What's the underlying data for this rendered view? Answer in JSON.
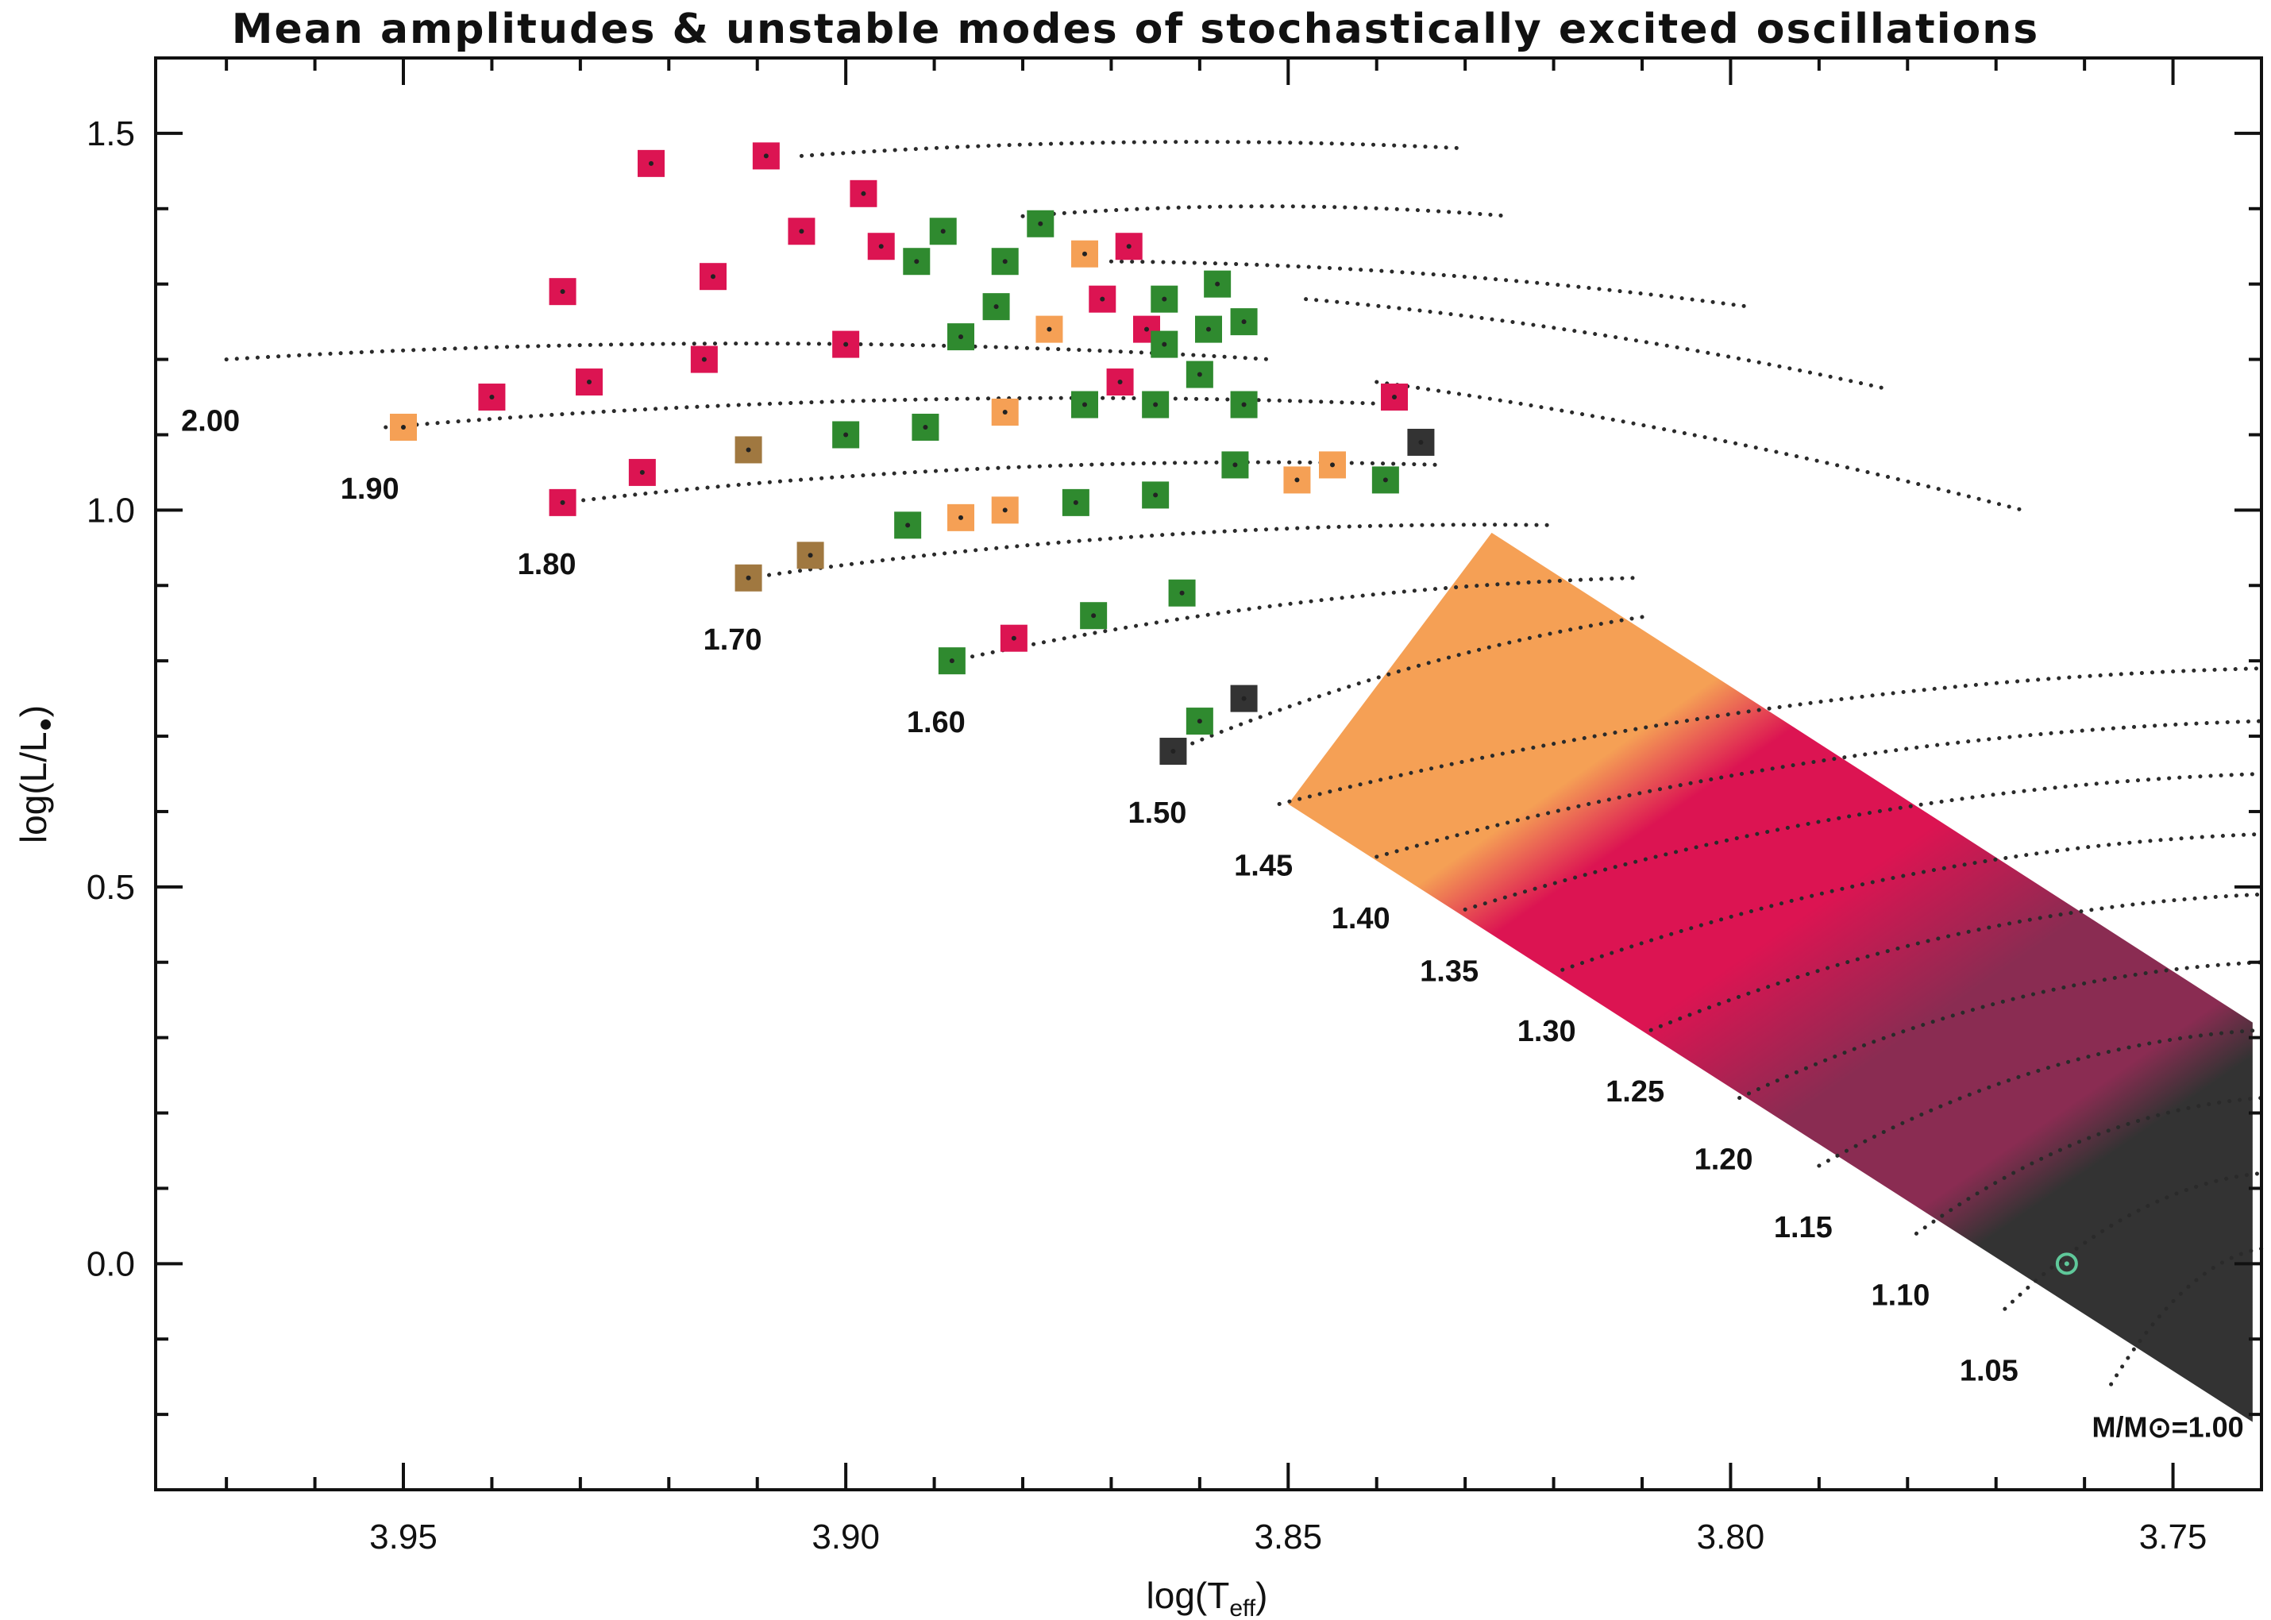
{
  "chart_data": {
    "type": "scatter",
    "title": "Mean amplitudes & unstable modes of stochastically excited oscillations",
    "xlabel": "log(T",
    "xlabel_sub": "eff",
    "xlabel_close": ")",
    "ylabel": "log(L/L",
    "ylabel_close": ")",
    "x_inverted": true,
    "xlim": [
      3.978,
      3.74
    ],
    "ylim": [
      -0.3,
      1.6
    ],
    "x_ticks": [
      3.95,
      3.9,
      3.85,
      3.8,
      3.75
    ],
    "x_tick_labels": [
      "3.95",
      "3.90",
      "3.85",
      "3.80",
      "3.75"
    ],
    "y_ticks": [
      0.0,
      0.5,
      1.0,
      1.5
    ],
    "y_tick_labels": [
      "0.0",
      "0.5",
      "1.0",
      "1.5"
    ],
    "grid": false,
    "colors": {
      "red": "#dc1452",
      "green": "#2f8a2f",
      "orange": "#f5a055",
      "brown": "#a07840",
      "dark": "#333333",
      "purple": "#8a2c52",
      "sun": "#5fc89a"
    },
    "masses": [
      {
        "label": "2.00",
        "x": 3.97,
        "y": 1.2,
        "track_end": [
          3.852,
          1.2
        ]
      },
      {
        "label": "1.90",
        "x": 3.952,
        "y": 1.11,
        "track_end": [
          3.837,
          1.14
        ]
      },
      {
        "label": "1.80",
        "x": 3.932,
        "y": 1.01,
        "track_end": [
          3.833,
          1.06
        ]
      },
      {
        "label": "1.70",
        "x": 3.911,
        "y": 0.91,
        "track_end": [
          3.82,
          0.98
        ]
      },
      {
        "label": "1.60",
        "x": 3.888,
        "y": 0.8,
        "track_end": [
          3.811,
          0.91
        ]
      },
      {
        "label": "1.50",
        "x": 3.863,
        "y": 0.68,
        "track_end": [
          3.809,
          0.86
        ]
      },
      {
        "label": "1.45",
        "x": 3.851,
        "y": 0.61
      },
      {
        "label": "1.40",
        "x": 3.84,
        "y": 0.54
      },
      {
        "label": "1.35",
        "x": 3.83,
        "y": 0.47
      },
      {
        "label": "1.30",
        "x": 3.819,
        "y": 0.39
      },
      {
        "label": "1.25",
        "x": 3.809,
        "y": 0.31
      },
      {
        "label": "1.20",
        "x": 3.799,
        "y": 0.22
      },
      {
        "label": "1.15",
        "x": 3.79,
        "y": 0.13
      },
      {
        "label": "1.10",
        "x": 3.779,
        "y": 0.04
      },
      {
        "label": "1.05",
        "x": 3.769,
        "y": -0.06
      },
      {
        "label": "M/M⊙=1.00",
        "x": 3.757,
        "y": -0.16
      }
    ],
    "upper_tracks": [
      {
        "start": [
          3.905,
          1.47
        ],
        "end": [
          3.83,
          1.48
        ]
      },
      {
        "start": [
          3.88,
          1.39
        ],
        "end": [
          3.825,
          1.39
        ]
      },
      {
        "start": [
          3.87,
          1.33
        ],
        "end": [
          3.798,
          1.27
        ]
      },
      {
        "start": [
          3.848,
          1.28
        ],
        "end": [
          3.782,
          1.16
        ]
      },
      {
        "start": [
          3.84,
          1.17
        ],
        "end": [
          3.767,
          1.0
        ]
      }
    ],
    "instability_strip": {
      "corners": [
        [
          3.85,
          0.61
        ],
        [
          3.827,
          0.97
        ],
        [
          3.741,
          0.32
        ],
        [
          3.741,
          -0.21
        ]
      ],
      "zones": [
        {
          "name": "orange",
          "color": "#f5a055"
        },
        {
          "name": "red",
          "color": "#dc1452"
        },
        {
          "name": "purple",
          "color": "#8a2c52"
        },
        {
          "name": "dark",
          "color": "#333333"
        }
      ]
    },
    "sun": {
      "x": 3.762,
      "y": 0.0
    },
    "points": [
      {
        "x": 3.922,
        "y": 1.46,
        "color": "red"
      },
      {
        "x": 3.909,
        "y": 1.47,
        "color": "red"
      },
      {
        "x": 3.898,
        "y": 1.42,
        "color": "red"
      },
      {
        "x": 3.889,
        "y": 1.37,
        "color": "green"
      },
      {
        "x": 3.878,
        "y": 1.38,
        "color": "green"
      },
      {
        "x": 3.905,
        "y": 1.37,
        "color": "red"
      },
      {
        "x": 3.896,
        "y": 1.35,
        "color": "red"
      },
      {
        "x": 3.892,
        "y": 1.33,
        "color": "green"
      },
      {
        "x": 3.882,
        "y": 1.33,
        "color": "green"
      },
      {
        "x": 3.873,
        "y": 1.34,
        "color": "orange"
      },
      {
        "x": 3.868,
        "y": 1.35,
        "color": "red"
      },
      {
        "x": 3.932,
        "y": 1.29,
        "color": "red"
      },
      {
        "x": 3.915,
        "y": 1.31,
        "color": "red"
      },
      {
        "x": 3.858,
        "y": 1.3,
        "color": "green"
      },
      {
        "x": 3.871,
        "y": 1.28,
        "color": "red"
      },
      {
        "x": 3.864,
        "y": 1.28,
        "color": "green"
      },
      {
        "x": 3.877,
        "y": 1.24,
        "color": "orange"
      },
      {
        "x": 3.883,
        "y": 1.27,
        "color": "green"
      },
      {
        "x": 3.887,
        "y": 1.23,
        "color": "green"
      },
      {
        "x": 3.9,
        "y": 1.22,
        "color": "red"
      },
      {
        "x": 3.866,
        "y": 1.24,
        "color": "red"
      },
      {
        "x": 3.864,
        "y": 1.22,
        "color": "green"
      },
      {
        "x": 3.859,
        "y": 1.24,
        "color": "green"
      },
      {
        "x": 3.855,
        "y": 1.25,
        "color": "green"
      },
      {
        "x": 3.94,
        "y": 1.15,
        "color": "red"
      },
      {
        "x": 3.929,
        "y": 1.17,
        "color": "red"
      },
      {
        "x": 3.916,
        "y": 1.2,
        "color": "red"
      },
      {
        "x": 3.95,
        "y": 1.11,
        "color": "orange"
      },
      {
        "x": 3.869,
        "y": 1.17,
        "color": "red"
      },
      {
        "x": 3.86,
        "y": 1.18,
        "color": "green"
      },
      {
        "x": 3.865,
        "y": 1.14,
        "color": "green"
      },
      {
        "x": 3.855,
        "y": 1.14,
        "color": "green"
      },
      {
        "x": 3.873,
        "y": 1.14,
        "color": "green"
      },
      {
        "x": 3.882,
        "y": 1.13,
        "color": "orange"
      },
      {
        "x": 3.891,
        "y": 1.11,
        "color": "green"
      },
      {
        "x": 3.9,
        "y": 1.1,
        "color": "green"
      },
      {
        "x": 3.911,
        "y": 1.08,
        "color": "brown"
      },
      {
        "x": 3.923,
        "y": 1.05,
        "color": "red"
      },
      {
        "x": 3.932,
        "y": 1.01,
        "color": "red"
      },
      {
        "x": 3.838,
        "y": 1.15,
        "color": "red"
      },
      {
        "x": 3.835,
        "y": 1.09,
        "color": "dark"
      },
      {
        "x": 3.845,
        "y": 1.06,
        "color": "orange"
      },
      {
        "x": 3.849,
        "y": 1.04,
        "color": "orange"
      },
      {
        "x": 3.839,
        "y": 1.04,
        "color": "green"
      },
      {
        "x": 3.856,
        "y": 1.06,
        "color": "green"
      },
      {
        "x": 3.865,
        "y": 1.02,
        "color": "green"
      },
      {
        "x": 3.874,
        "y": 1.01,
        "color": "green"
      },
      {
        "x": 3.882,
        "y": 1.0,
        "color": "orange"
      },
      {
        "x": 3.887,
        "y": 0.99,
        "color": "orange"
      },
      {
        "x": 3.893,
        "y": 0.98,
        "color": "green"
      },
      {
        "x": 3.904,
        "y": 0.94,
        "color": "brown"
      },
      {
        "x": 3.911,
        "y": 0.91,
        "color": "brown"
      },
      {
        "x": 3.862,
        "y": 0.89,
        "color": "green"
      },
      {
        "x": 3.872,
        "y": 0.86,
        "color": "green"
      },
      {
        "x": 3.881,
        "y": 0.83,
        "color": "red"
      },
      {
        "x": 3.888,
        "y": 0.8,
        "color": "green"
      },
      {
        "x": 3.855,
        "y": 0.75,
        "color": "dark"
      },
      {
        "x": 3.86,
        "y": 0.72,
        "color": "green"
      },
      {
        "x": 3.863,
        "y": 0.68,
        "color": "dark"
      }
    ]
  }
}
